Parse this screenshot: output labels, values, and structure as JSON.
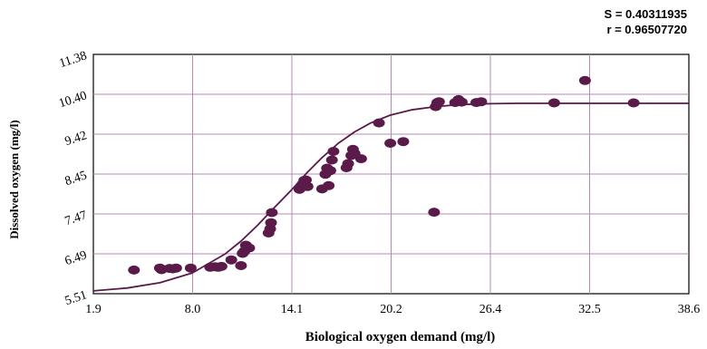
{
  "stats": {
    "s_text": "S = 0.40311935",
    "r_text": "r = 0.96507720"
  },
  "chart_data": {
    "type": "scatter",
    "xlabel": "Biological oxygen demand (mg/l)",
    "ylabel": "Dissolved oxygen (mg/l)",
    "xlim": [
      1.9,
      38.6
    ],
    "ylim": [
      5.51,
      11.38
    ],
    "x_ticks": [
      "1.9",
      "8.0",
      "14.1",
      "20.2",
      "26.4",
      "32.5",
      "38.6"
    ],
    "y_ticks": [
      "5.51",
      "6.49",
      "7.47",
      "8.45",
      "9.42",
      "10.40",
      "11.38"
    ],
    "grid": true,
    "colors": {
      "point": "#5a1a4a",
      "curve": "#5a1a4a",
      "grid": "#b48ab4",
      "frame": "#000000"
    },
    "curve": {
      "model": "sigmoid",
      "x": [
        1.9,
        4.0,
        6.0,
        8.0,
        10.0,
        11.0,
        12.0,
        13.0,
        14.1,
        15.0,
        16.0,
        17.0,
        18.0,
        19.0,
        20.2,
        21.5,
        23.0,
        24.5,
        26.4,
        28.0,
        30.0,
        32.5,
        35.0,
        38.6
      ],
      "y": [
        5.58,
        5.65,
        5.78,
        6.02,
        6.48,
        6.8,
        7.18,
        7.6,
        8.05,
        8.45,
        8.85,
        9.2,
        9.48,
        9.7,
        9.89,
        10.02,
        10.1,
        10.15,
        10.17,
        10.18,
        10.18,
        10.18,
        10.18,
        10.18
      ]
    },
    "points": {
      "x": [
        4.4,
        6.0,
        6.1,
        6.6,
        6.8,
        7.0,
        7.9,
        9.1,
        9.4,
        9.6,
        9.8,
        10.4,
        11.0,
        11.1,
        11.2,
        11.3,
        11.5,
        12.7,
        12.8,
        12.85,
        12.9,
        14.6,
        14.7,
        14.8,
        14.9,
        15.0,
        15.1,
        16.0,
        16.2,
        16.3,
        16.4,
        16.5,
        16.6,
        16.7,
        17.5,
        17.6,
        17.8,
        17.9,
        18.0,
        18.4,
        19.5,
        20.2,
        21.0,
        22.9,
        23.0,
        23.1,
        23.2,
        24.2,
        24.4,
        24.6,
        25.5,
        25.8,
        30.3,
        32.2,
        35.2
      ],
      "y": [
        6.09,
        6.14,
        6.1,
        6.13,
        6.12,
        6.14,
        6.14,
        6.16,
        6.17,
        6.16,
        6.18,
        6.34,
        6.2,
        6.5,
        6.55,
        6.7,
        6.63,
        7.0,
        7.1,
        7.25,
        7.5,
        8.07,
        8.13,
        8.2,
        8.29,
        8.3,
        8.14,
        8.08,
        8.44,
        8.59,
        8.16,
        8.53,
        8.79,
        9.0,
        8.6,
        8.7,
        8.9,
        9.05,
        8.95,
        8.82,
        9.7,
        9.2,
        9.24,
        7.51,
        10.1,
        10.2,
        10.22,
        10.2,
        10.27,
        10.21,
        10.2,
        10.22,
        10.19,
        10.74,
        10.19
      ]
    }
  }
}
